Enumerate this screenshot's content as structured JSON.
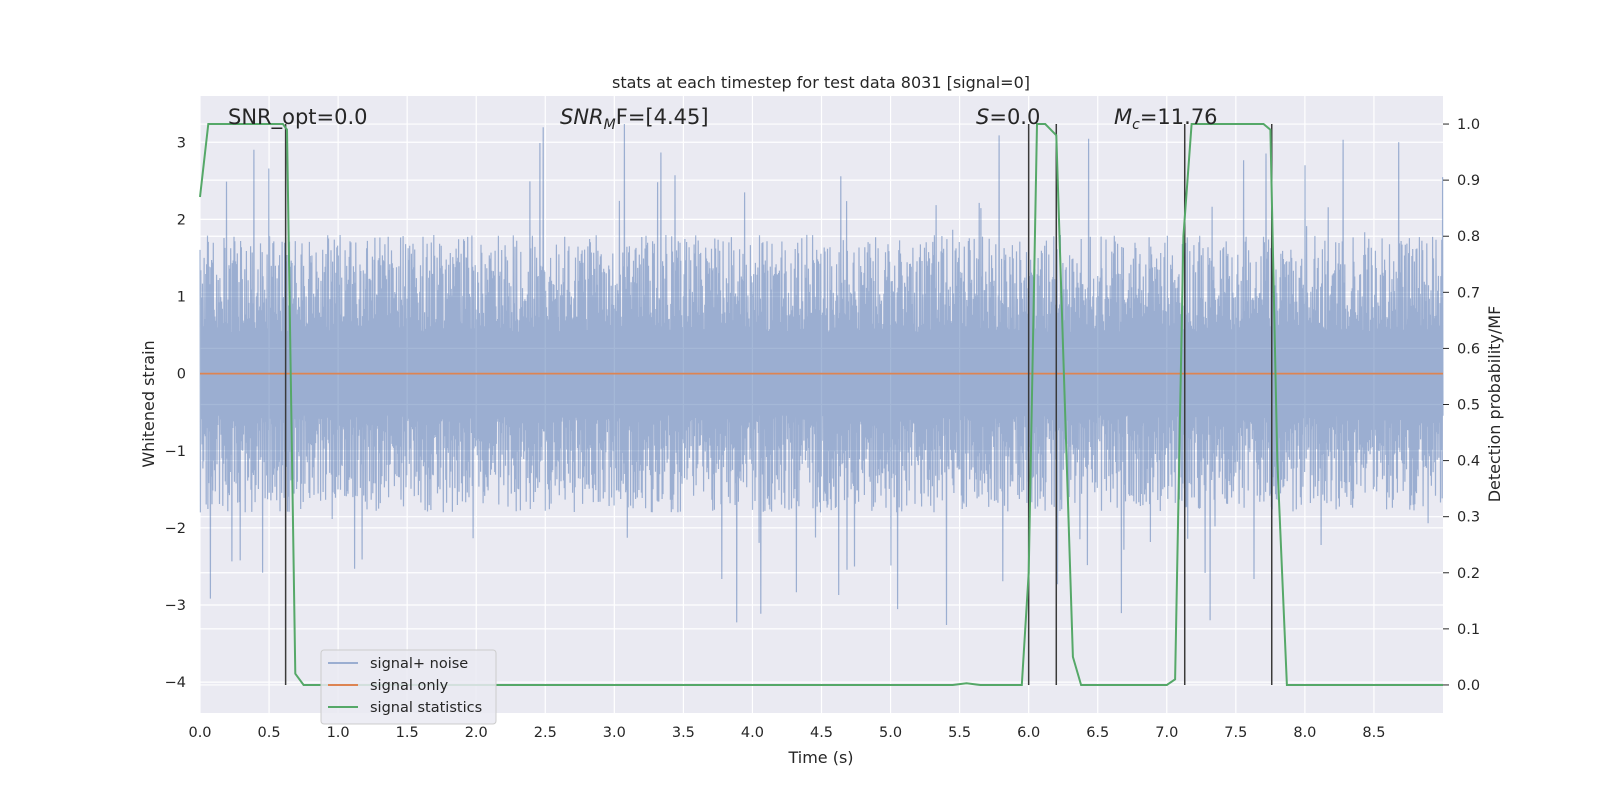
{
  "chart_data": {
    "type": "line",
    "title": "stats at each timestep for test data 8031 [signal=0]",
    "xlabel": "Time (s)",
    "ylabel": "Whitened strain",
    "y2label": "Detection probability/MF",
    "xlim": [
      0.0,
      9.0
    ],
    "ylim": [
      -4.4,
      3.6
    ],
    "y2lim": [
      -0.05,
      1.05
    ],
    "xticks": [
      "0.0",
      "0.5",
      "1.0",
      "1.5",
      "2.0",
      "2.5",
      "3.0",
      "3.5",
      "4.0",
      "4.5",
      "5.0",
      "5.5",
      "6.0",
      "6.5",
      "7.0",
      "7.5",
      "8.0",
      "8.5"
    ],
    "yticks": [
      "−4",
      "−3",
      "−2",
      "−1",
      "0",
      "1",
      "2",
      "3"
    ],
    "y2ticks": [
      "0.0",
      "0.1",
      "0.2",
      "0.3",
      "0.4",
      "0.5",
      "0.6",
      "0.7",
      "0.8",
      "0.9",
      "1.0"
    ],
    "grid": true,
    "legend_position": "lower-left",
    "annotations": {
      "snr_opt": "SNR_opt=0.0",
      "snr_mf": "SNR_MF=[4.45]",
      "snr_mf_base": "SNR",
      "snr_mf_sub": "M",
      "snr_mf_rest": "F=[4.45]",
      "s": "S=0.0",
      "s_base": "S",
      "s_rest": "=0.0",
      "mc": "M_c=11.76",
      "mc_base": "M",
      "mc_sub": "c",
      "mc_rest": "=11.76"
    },
    "colors": {
      "background": "#eaeaf2",
      "noise": "#4c72b0",
      "signal": "#dd8452",
      "stats": "#55a868",
      "markers": "#3a3a3a"
    },
    "series": [
      {
        "name": "signal+ noise",
        "axis": "left",
        "kind": "noise",
        "amplitude_core": 1.8,
        "amplitude_peak": 3.3,
        "y_min": -3.3,
        "y_max": 3.3
      },
      {
        "name": "signal only",
        "axis": "left",
        "x": [
          0.0,
          9.0
        ],
        "y": [
          0.0,
          0.0
        ]
      },
      {
        "name": "signal statistics",
        "axis": "right",
        "x": [
          0.0,
          0.06,
          0.12,
          0.5,
          0.6,
          0.63,
          0.69,
          0.75,
          1.5,
          3.0,
          4.5,
          5.45,
          5.55,
          5.65,
          5.95,
          6.0,
          6.06,
          6.12,
          6.2,
          6.32,
          6.38,
          6.6,
          7.0,
          7.06,
          7.12,
          7.18,
          7.7,
          7.75,
          7.8,
          7.87,
          8.5,
          9.0
        ],
        "y": [
          0.87,
          1.0,
          1.0,
          1.0,
          1.0,
          0.99,
          0.02,
          0.0,
          0.0,
          0.0,
          0.0,
          0.0,
          0.003,
          0.0,
          0.0,
          0.2,
          1.0,
          1.0,
          0.98,
          0.05,
          0.0,
          0.0,
          0.0,
          0.01,
          0.8,
          1.0,
          1.0,
          0.99,
          0.4,
          0.0,
          0.0,
          0.0
        ]
      }
    ],
    "vlines": [
      0.62,
      6.0,
      6.2,
      7.13,
      7.76
    ]
  },
  "legend": {
    "items": [
      {
        "label": "signal+ noise"
      },
      {
        "label": "signal only"
      },
      {
        "label": "signal statistics"
      }
    ]
  }
}
